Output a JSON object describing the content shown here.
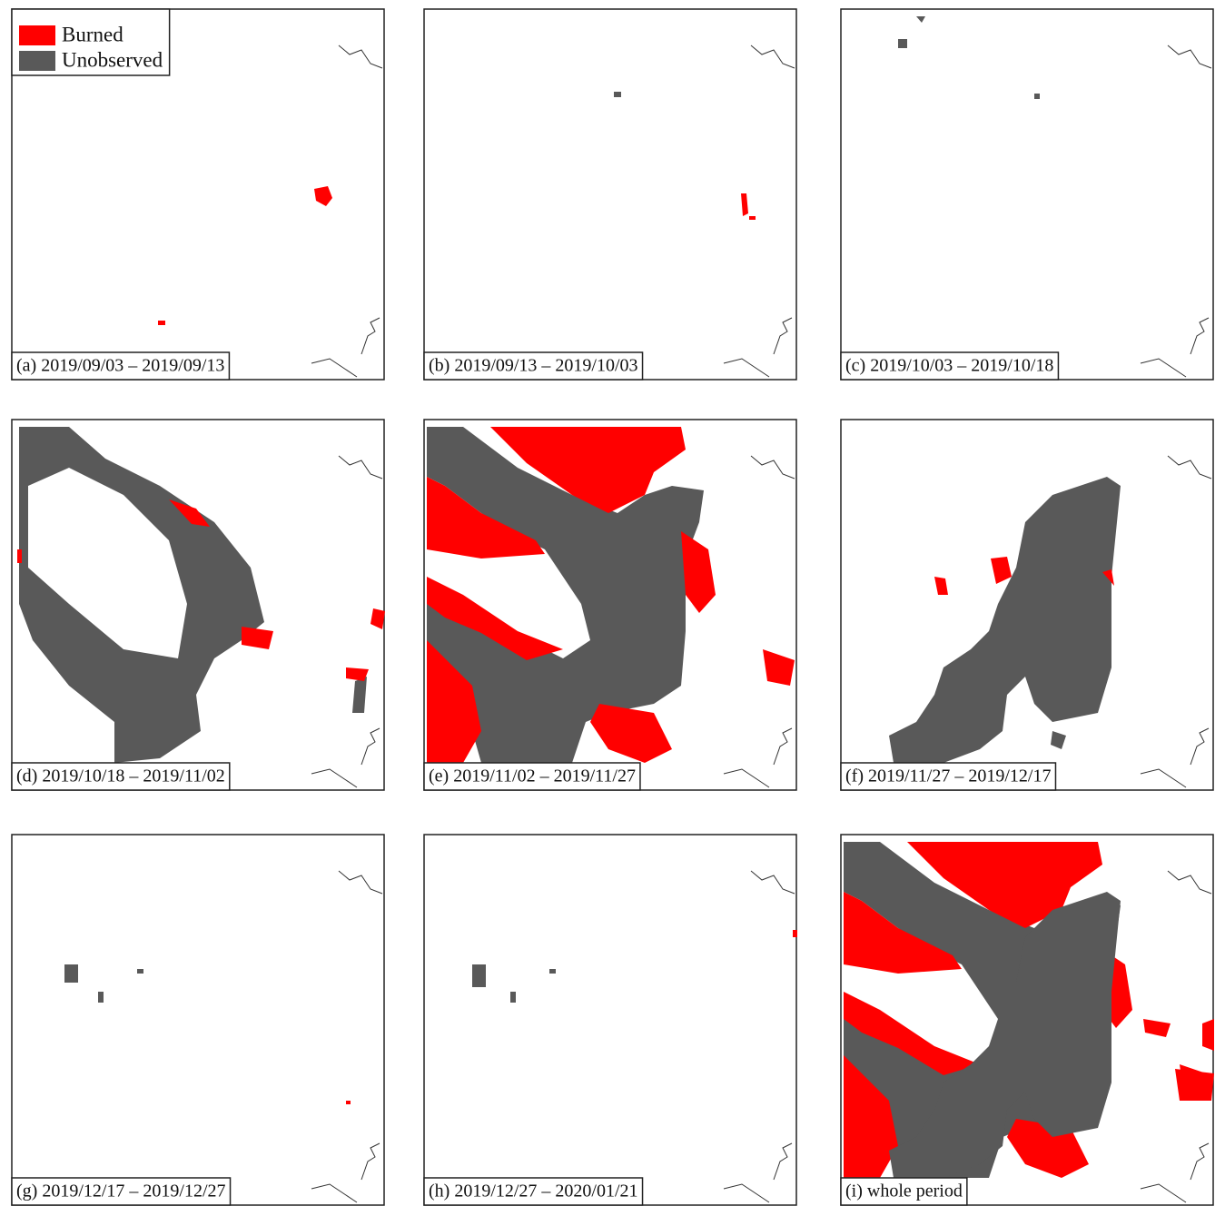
{
  "legend": [
    {
      "label": "Burned",
      "color": "#ff0000"
    },
    {
      "label": "Unobserved",
      "color": "#595959"
    }
  ],
  "panels": [
    {
      "label": "(a) 2019/09/03 – 2019/09/13"
    },
    {
      "label": "(b) 2019/09/13 – 2019/10/03"
    },
    {
      "label": "(c) 2019/10/03 – 2019/10/18"
    },
    {
      "label": "(d) 2019/10/18 – 2019/11/02"
    },
    {
      "label": "(e) 2019/11/02 – 2019/11/27"
    },
    {
      "label": "(f) 2019/11/27 – 2019/12/17"
    },
    {
      "label": "(g) 2019/12/17 – 2019/12/27"
    },
    {
      "label": "(h) 2019/12/27 – 2020/01/21"
    },
    {
      "label": "(i) whole period"
    }
  ]
}
